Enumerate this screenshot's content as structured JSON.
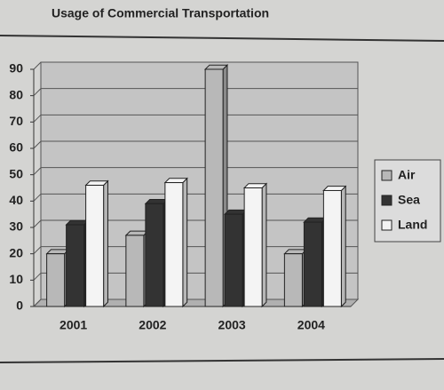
{
  "chart_data": {
    "type": "bar",
    "title": "Usage of Commercial Transportation",
    "categories": [
      "2001",
      "2002",
      "2003",
      "2004"
    ],
    "series": [
      {
        "name": "Air",
        "color": "#b8b8b8",
        "values": [
          20,
          27,
          90,
          20
        ]
      },
      {
        "name": "Sea",
        "color": "#333333",
        "values": [
          31,
          39,
          35,
          32
        ]
      },
      {
        "name": "Land",
        "color": "#f4f4f4",
        "values": [
          46,
          47,
          45,
          44
        ]
      }
    ],
    "ylim": [
      0,
      90
    ],
    "yticks": [
      0,
      10,
      20,
      30,
      40,
      50,
      60,
      70,
      80,
      90
    ],
    "grid": true,
    "legend": "right"
  }
}
